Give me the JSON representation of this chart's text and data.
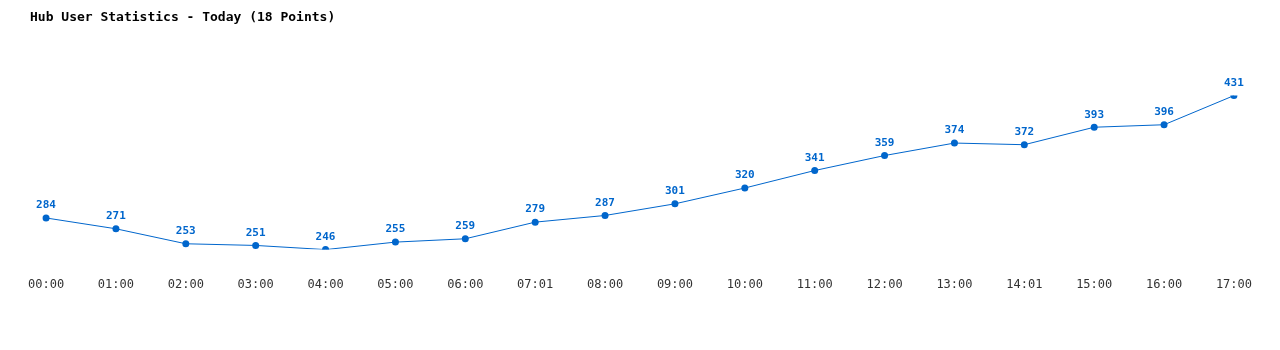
{
  "chart_data": {
    "type": "line",
    "title": "Hub User Statistics - Today (18 Points)",
    "categories": [
      "00:00",
      "01:00",
      "02:00",
      "03:00",
      "04:00",
      "05:00",
      "06:00",
      "07:01",
      "08:00",
      "09:00",
      "10:00",
      "11:00",
      "12:00",
      "13:00",
      "14:01",
      "15:00",
      "16:00",
      "17:00"
    ],
    "series": [
      {
        "color": "#0066cc",
        "values": [
          284,
          271,
          253,
          251,
          246,
          255,
          259,
          279,
          287,
          301,
          320,
          341,
          359,
          374,
          372,
          393,
          396,
          431
        ]
      }
    ],
    "data_labels": true,
    "marker": "circle",
    "line_style": "solid",
    "grid": false,
    "legend": false
  }
}
